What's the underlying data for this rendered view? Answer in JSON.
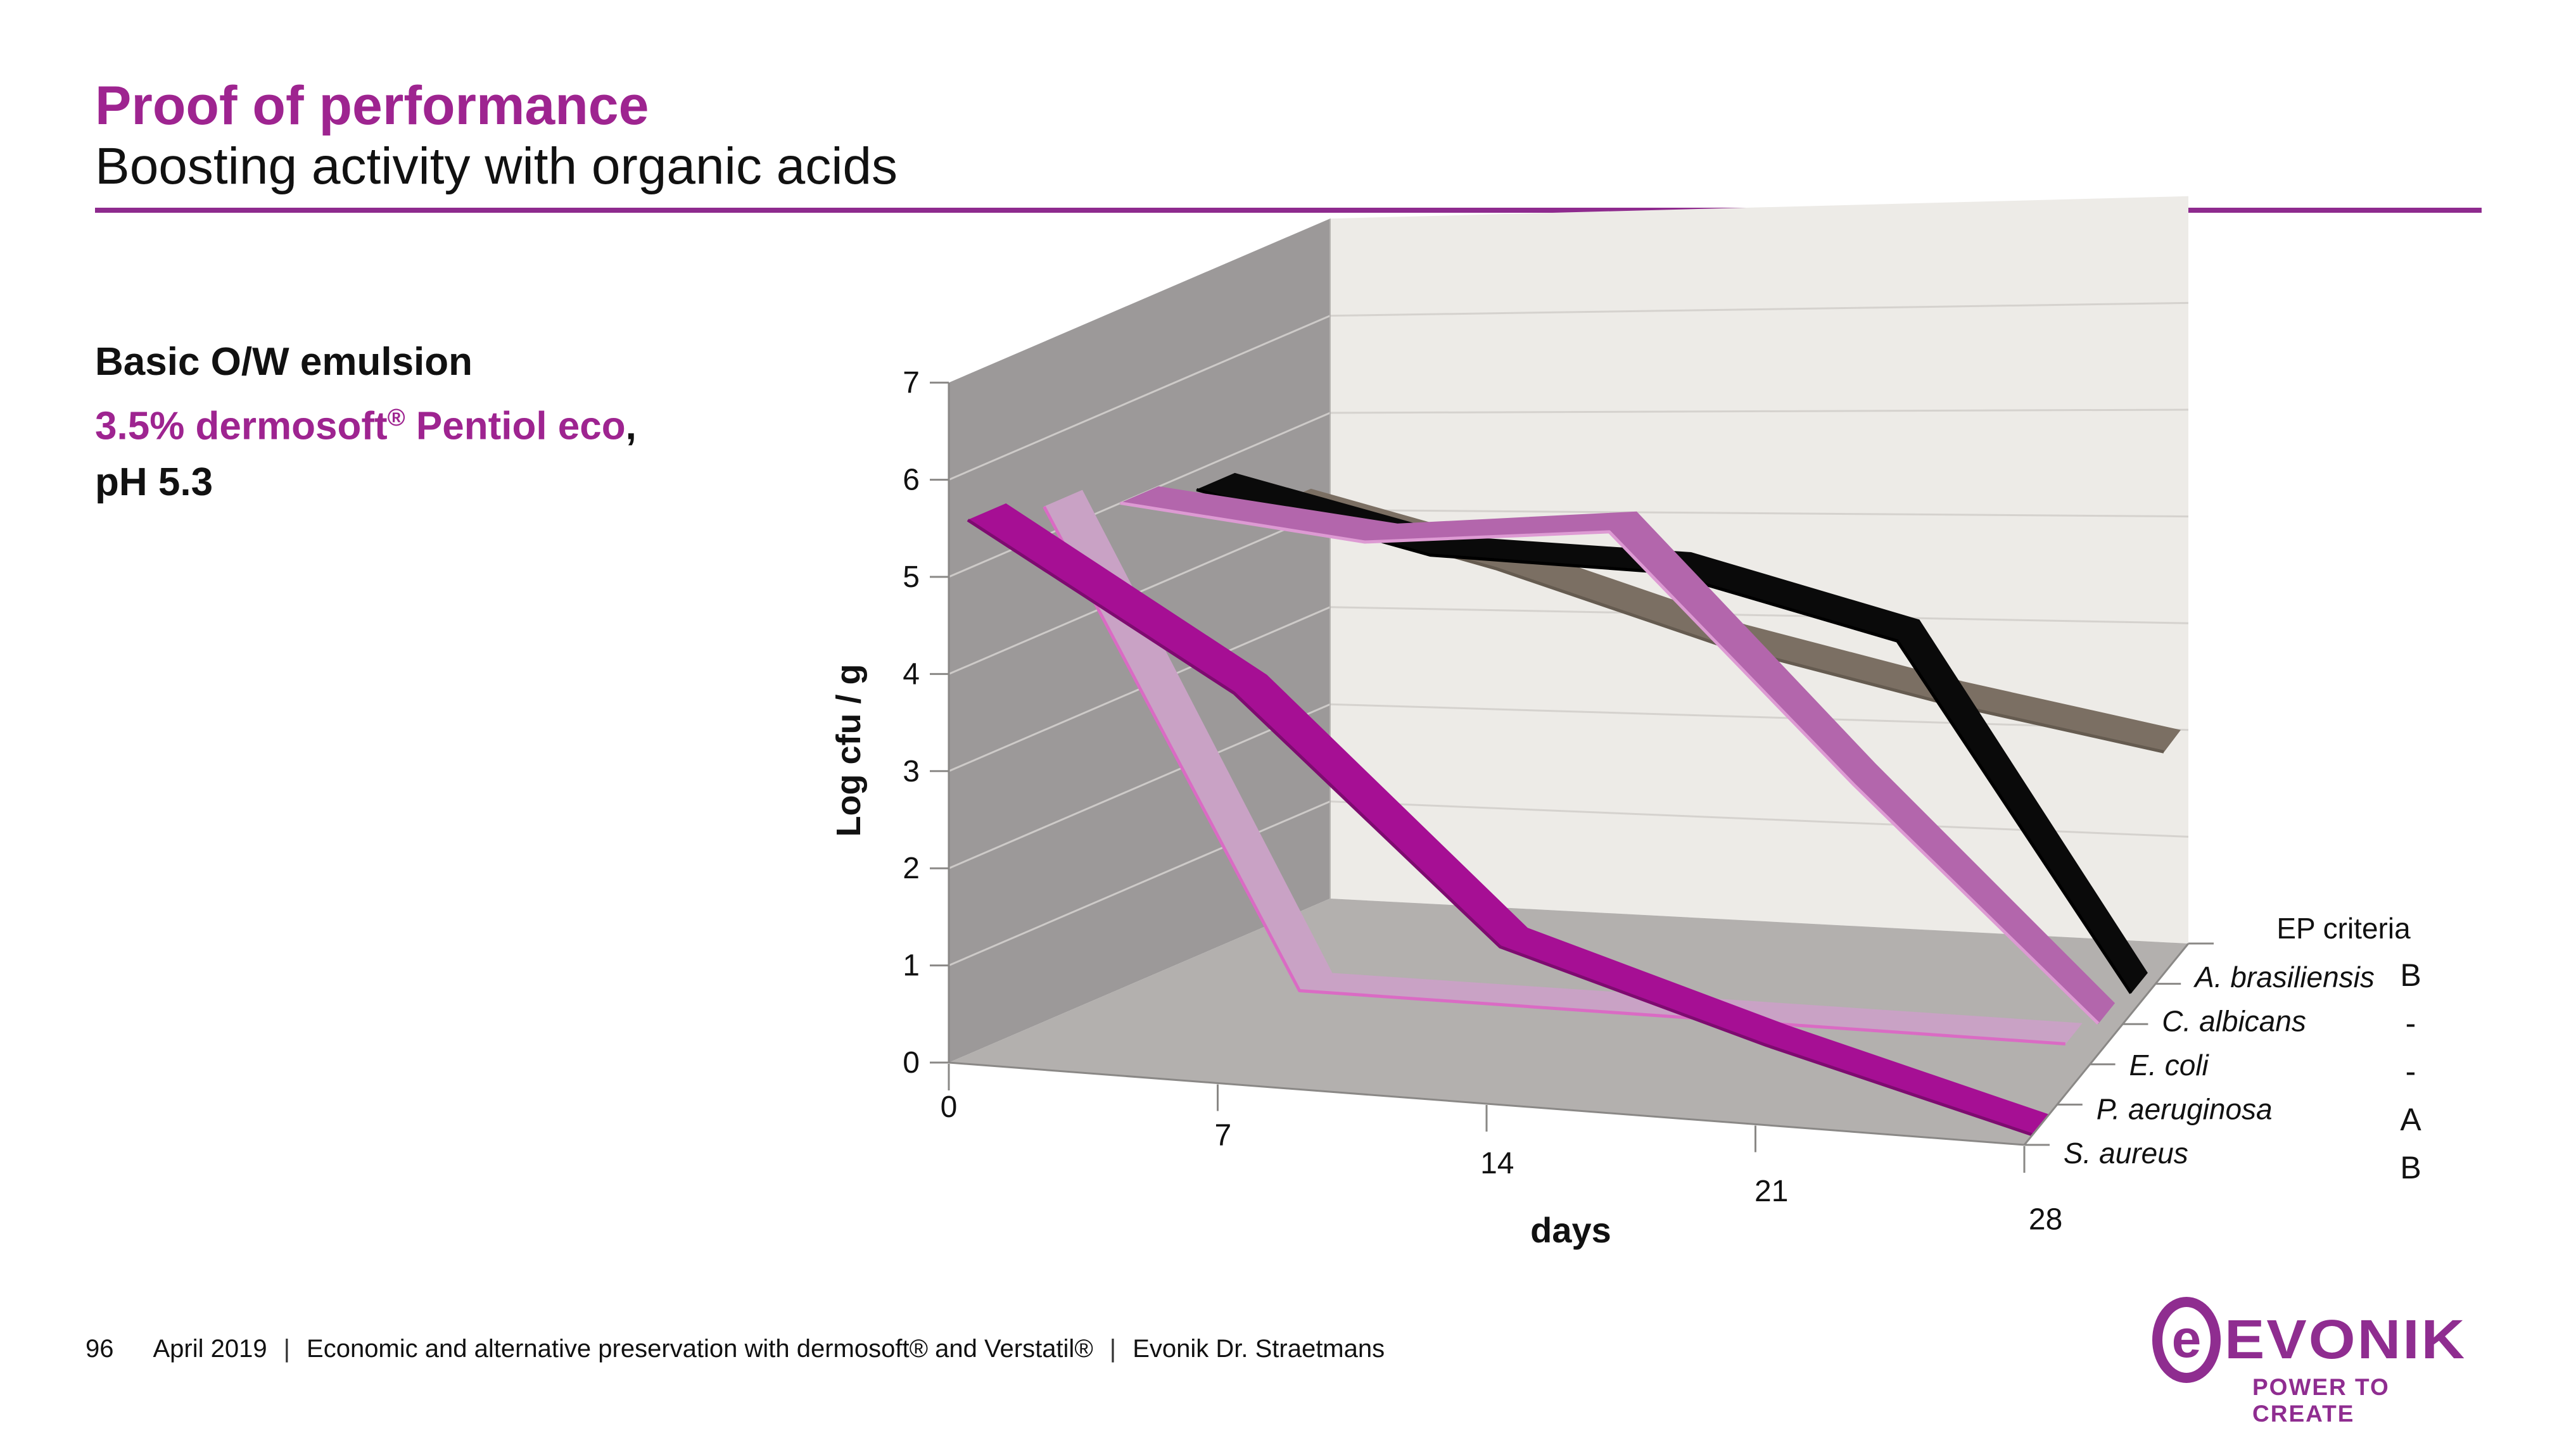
{
  "slide": {
    "title": "Proof of performance",
    "subtitle": "Boosting activity with organic acids",
    "accent_color": "#9E2490",
    "rule_color": "#8E2A8E"
  },
  "info_block": {
    "line1": "Basic O/W emulsion",
    "line2_main": "3.5% dermosoft",
    "line2_sup": "®",
    "line2_rest": " Pentiol eco",
    "line2_comma": ",",
    "line3": "pH 5.3"
  },
  "chart_data": {
    "type": "line",
    "style": "3d-ribbon",
    "title": "",
    "xlabel": "days",
    "ylabel": "Log cfu / g",
    "x": [
      0,
      7,
      14,
      21,
      28
    ],
    "x_tick_labels": [
      "0",
      "7",
      "14",
      "21",
      "28"
    ],
    "ylim": [
      0,
      7
    ],
    "yticks": [
      0,
      1,
      2,
      3,
      4,
      5,
      6,
      7
    ],
    "grid": true,
    "legend_position": "right",
    "legend_title": "EP criteria",
    "series": [
      {
        "name": "A. brasiliensis",
        "ep_criteria": "B",
        "color": "#7B6F63",
        "edge_color": "#655B50",
        "values": [
          4.3,
          3.7,
          3.0,
          2.5,
          2.1
        ]
      },
      {
        "name": "C. albicans",
        "ep_criteria": "-",
        "color": "#0a0a0a",
        "edge_color": "#000000",
        "values": [
          4.8,
          4.2,
          4.1,
          3.5,
          0.2
        ]
      },
      {
        "name": "E. coli",
        "ep_criteria": "-",
        "color": "#B366AC",
        "edge_color": "#DD9AD3",
        "values": [
          5.0,
          4.7,
          4.9,
          2.5,
          0.3
        ]
      },
      {
        "name": "P. aeruginosa",
        "ep_criteria": "A",
        "color": "#C9A2C5",
        "edge_color": "#DA6BC4",
        "values": [
          5.3,
          0.5,
          0.5,
          0.5,
          0.5
        ]
      },
      {
        "name": "S. aureus",
        "ep_criteria": "B",
        "color": "#A60F94",
        "edge_color": "#7E0B70",
        "values": [
          5.5,
          3.9,
          1.5,
          0.7,
          0.0
        ]
      }
    ],
    "walls": {
      "left_wall": "#9C9999",
      "back_wall": "#EDEBE7",
      "floor": "#B3B0AE",
      "grid_left": "#CDCAC8",
      "grid_back": "#D5D2CE",
      "axis": "#8A8886"
    }
  },
  "footer": {
    "page_number": "96",
    "date": "April 2019",
    "separator": "|",
    "description": "Economic and alternative preservation with dermosoft® and Verstatil®",
    "author": "Evonik Dr. Straetmans"
  },
  "logo": {
    "brand": "EVONIK",
    "tagline": "POWER TO CREATE",
    "color": "#8F2D90"
  }
}
